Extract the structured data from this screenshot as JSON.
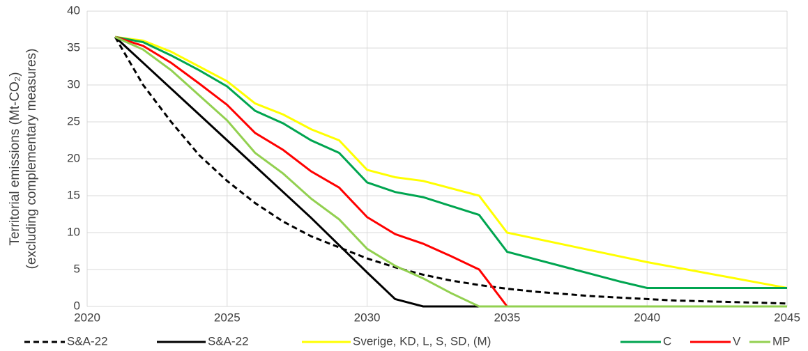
{
  "chart_data": {
    "type": "line",
    "y_label": [
      "Territorial emissions  (Mt-CO₂)",
      "(excluding complementary measures)"
    ],
    "x": [
      2021,
      2022,
      2023,
      2024,
      2025,
      2026,
      2027,
      2028,
      2029,
      2030,
      2031,
      2032,
      2033,
      2034,
      2035,
      2036,
      2037,
      2038,
      2039,
      2040,
      2041,
      2042,
      2043,
      2044,
      2045
    ],
    "series": [
      {
        "name": "S&A-22",
        "color": "#000000",
        "line_style": "dashed",
        "values": [
          36.5,
          30,
          25,
          20.5,
          17,
          14,
          11.5,
          9.5,
          8,
          6.5,
          5.3,
          4.3,
          3.5,
          2.9,
          2.4,
          2,
          1.7,
          1.4,
          1.2,
          1,
          0.8,
          0.7,
          0.6,
          0.5,
          0.4
        ]
      },
      {
        "name": "S&A-22",
        "color": "#000000",
        "line_style": "solid",
        "values": [
          36.5,
          33,
          29.5,
          26,
          22.5,
          19,
          15.5,
          12,
          8.3,
          4.6,
          1,
          0,
          0,
          0,
          0,
          0,
          0,
          0,
          0,
          0,
          0,
          0,
          0,
          0,
          0
        ]
      },
      {
        "name": "Sverige, KD, L, S, SD, (M)",
        "color": "#ffff00",
        "line_style": "solid",
        "values": [
          36.5,
          36,
          34.5,
          32.5,
          30.5,
          27.5,
          26,
          24,
          22.5,
          18.5,
          17.5,
          17,
          16,
          15,
          10,
          9.2,
          8.4,
          7.6,
          6.8,
          6,
          5.3,
          4.6,
          3.9,
          3.2,
          2.5
        ]
      },
      {
        "name": "C",
        "color": "#00a550",
        "line_style": "solid",
        "values": [
          36.5,
          35.8,
          34,
          32,
          29.8,
          26.5,
          24.8,
          22.5,
          20.8,
          16.8,
          15.5,
          14.8,
          13.6,
          12.4,
          7.4,
          6.4,
          5.4,
          4.4,
          3.4,
          2.5,
          2.5,
          2.5,
          2.5,
          2.5,
          2.5
        ]
      },
      {
        "name": "V",
        "color": "#ff0000",
        "line_style": "solid",
        "values": [
          36.5,
          35.3,
          33,
          30.2,
          27.3,
          23.5,
          21.2,
          18.3,
          16.1,
          12.1,
          9.8,
          8.5,
          6.8,
          5,
          0,
          0,
          0,
          0,
          0,
          0,
          0,
          0,
          0,
          0,
          0
        ]
      },
      {
        "name": "MP",
        "color": "#92d050",
        "line_style": "solid",
        "values": [
          36.5,
          34.8,
          32,
          28.6,
          25.2,
          20.8,
          18,
          14.6,
          11.8,
          7.8,
          5.5,
          3.8,
          1.8,
          0,
          0,
          0,
          0,
          0,
          0,
          0,
          0,
          0,
          0,
          0,
          0
        ]
      }
    ],
    "xlim": [
      2020,
      2045
    ],
    "xticks": [
      2020,
      2025,
      2030,
      2035,
      2040,
      2045
    ],
    "ylim": [
      0,
      40
    ],
    "yticks": [
      0,
      5,
      10,
      15,
      20,
      25,
      30,
      35,
      40
    ],
    "grid": true,
    "legend": "bottom"
  }
}
